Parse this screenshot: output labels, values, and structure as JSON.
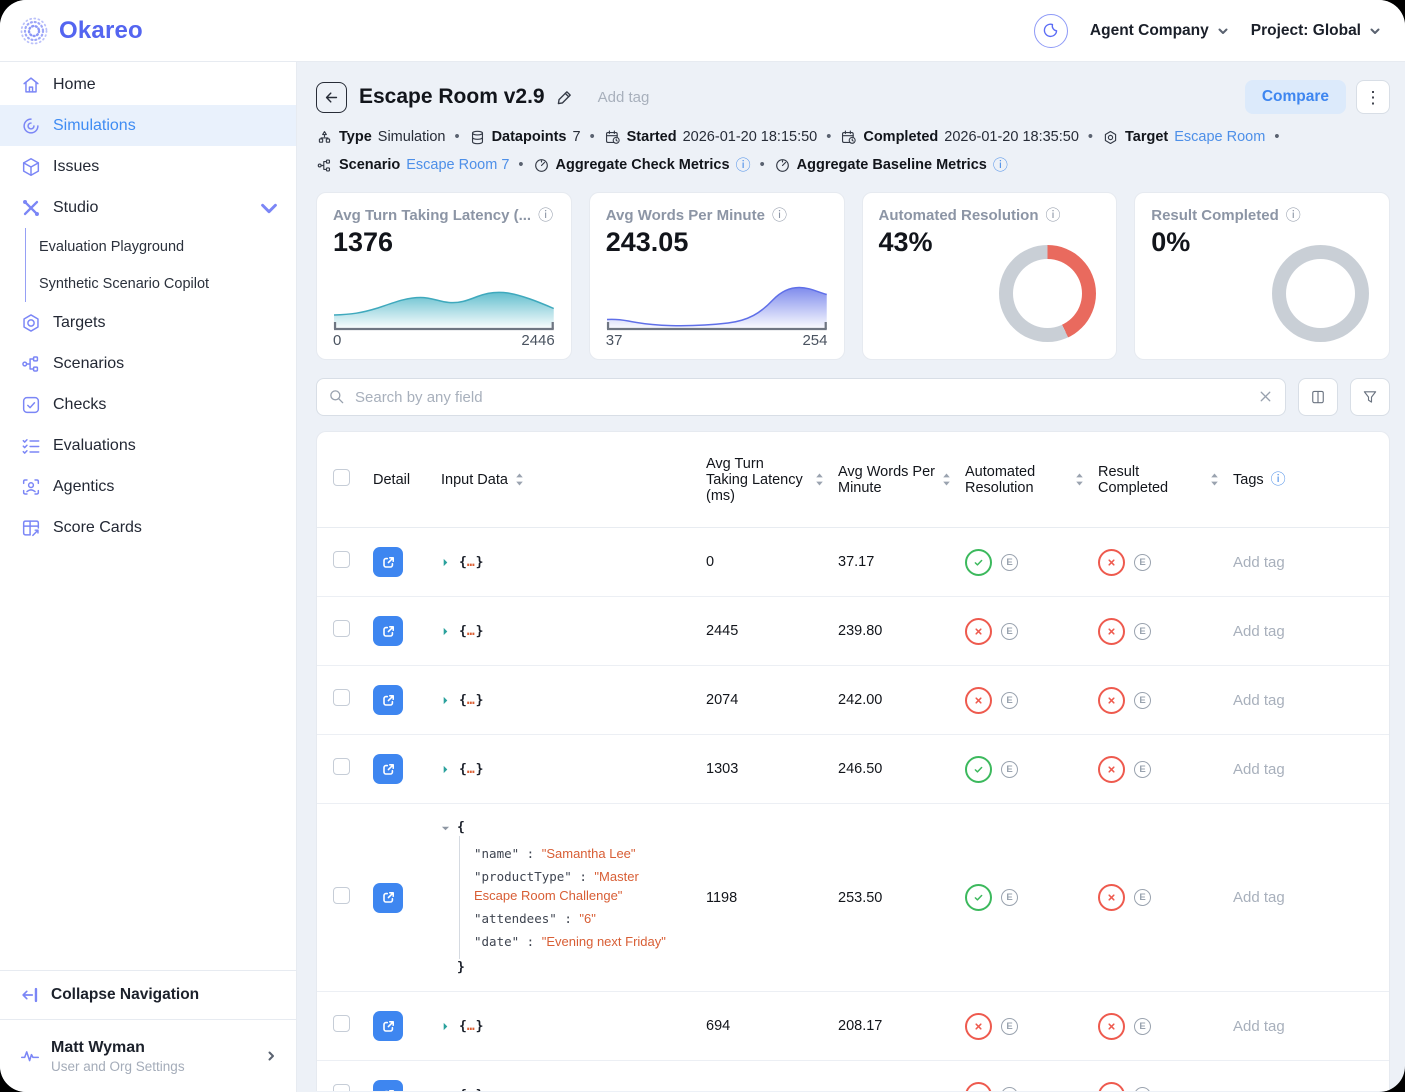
{
  "header": {
    "logo_text": "Okareo",
    "org_selector": "Agent Company",
    "project_selector": "Project: Global"
  },
  "sidebar": {
    "items": [
      {
        "label": "Home",
        "icon": "home"
      },
      {
        "label": "Simulations",
        "icon": "simulations",
        "active": true
      },
      {
        "label": "Issues",
        "icon": "cube"
      },
      {
        "label": "Studio",
        "icon": "studio",
        "expanded": true,
        "children": [
          "Evaluation Playground",
          "Synthetic Scenario Copilot"
        ]
      },
      {
        "label": "Targets",
        "icon": "hexagon-target"
      },
      {
        "label": "Scenarios",
        "icon": "branch"
      },
      {
        "label": "Checks",
        "icon": "check-square"
      },
      {
        "label": "Evaluations",
        "icon": "checklist"
      },
      {
        "label": "Agentics",
        "icon": "agent-scan"
      },
      {
        "label": "Score Cards",
        "icon": "scorecard"
      }
    ],
    "collapse_label": "Collapse Navigation",
    "user": {
      "name": "Matt Wyman",
      "subtitle": "User and Org Settings"
    }
  },
  "titlebar": {
    "title": "Escape Room v2.9",
    "add_tag_placeholder": "Add tag",
    "compare_label": "Compare",
    "kebab": "⋮"
  },
  "meta": {
    "sep": "•",
    "type_label": "Type",
    "type_value": "Simulation",
    "datapoints_label": "Datapoints",
    "datapoints_value": "7",
    "started_label": "Started",
    "started_value": "2026-01-20 18:15:50",
    "completed_label": "Completed",
    "completed_value": "2026-01-20 18:35:50",
    "target_label": "Target",
    "target_value": "Escape Room",
    "scenario_label": "Scenario",
    "scenario_value": "Escape Room 7",
    "check_metrics_label": "Aggregate Check Metrics",
    "baseline_metrics_label": "Aggregate Baseline Metrics",
    "info_glyph": "ⓘ"
  },
  "cards": [
    {
      "title": "Avg Turn Taking Latency (...",
      "value": "1376",
      "type": "area",
      "axis_min": "0",
      "axis_max": "2446",
      "line_color": "#3FA9BD"
    },
    {
      "title": "Avg Words Per Minute",
      "value": "243.05",
      "type": "area",
      "axis_min": "37",
      "axis_max": "254",
      "line_color": "#5F6FE8"
    },
    {
      "title": "Automated Resolution",
      "value": "43%",
      "type": "donut",
      "percent": 43,
      "fill_color": "#E96A5E",
      "track_color": "#C9CFD6"
    },
    {
      "title": "Result Completed",
      "value": "0%",
      "type": "donut",
      "percent": 0,
      "fill_color": "#E96A5E",
      "track_color": "#C9CFD6"
    },
    {
      "info_glyph": "ⓘ"
    }
  ],
  "search": {
    "placeholder": "Search by any field"
  },
  "table": {
    "columns": {
      "detail": "Detail",
      "input": "Input Data",
      "latency": "Avg Turn Taking Latency (ms)",
      "words": "Avg Words Per Minute",
      "automated": "Automated Resolution",
      "result": "Result Completed",
      "tags": "Tags"
    },
    "tags_info_glyph": "ⓘ",
    "input_preview": {
      "open": "{",
      "dots": "…",
      "close": "}"
    },
    "rows": [
      {
        "latency": "0",
        "words": "37.17",
        "automated_resolution": "pass",
        "result_completed": "fail",
        "tag": "Add tag"
      },
      {
        "latency": "2445",
        "words": "239.80",
        "automated_resolution": "fail",
        "result_completed": "fail",
        "tag": "Add tag"
      },
      {
        "latency": "2074",
        "words": "242.00",
        "automated_resolution": "fail",
        "result_completed": "fail",
        "tag": "Add tag"
      },
      {
        "latency": "1303",
        "words": "246.50",
        "automated_resolution": "pass",
        "result_completed": "fail",
        "tag": "Add tag"
      },
      {
        "expanded": true,
        "input_json": [
          {
            "key": "name",
            "value": "Samantha Lee"
          },
          {
            "key": "productType",
            "value": "Master Escape Room Challenge"
          },
          {
            "key": "attendees",
            "value": "6"
          },
          {
            "key": "date",
            "value": "Evening next Friday"
          }
        ],
        "latency": "1198",
        "words": "253.50",
        "automated_resolution": "pass",
        "result_completed": "fail",
        "tag": "Add tag"
      },
      {
        "latency": "694",
        "words": "208.17",
        "automated_resolution": "fail",
        "result_completed": "fail",
        "tag": "Add tag"
      },
      {
        "partial": true,
        "latency": "",
        "words": "",
        "automated_resolution": "fail",
        "result_completed": "fail",
        "tag": ""
      }
    ],
    "e_badge": "E"
  },
  "colors": {
    "accent_blue": "#3E86F0",
    "link_blue": "#4D8FE8",
    "brand_indigo": "#5465F0",
    "sidebar_icon": "#7B86F6",
    "pass_green": "#3CB95D",
    "fail_red": "#EE5A4E",
    "donut_red": "#E96A5E",
    "donut_gray": "#C9CFD6",
    "json_string_orange": "#D85E35",
    "chart_teal": "#3FA9BD",
    "chart_indigo": "#5F6FE8"
  }
}
